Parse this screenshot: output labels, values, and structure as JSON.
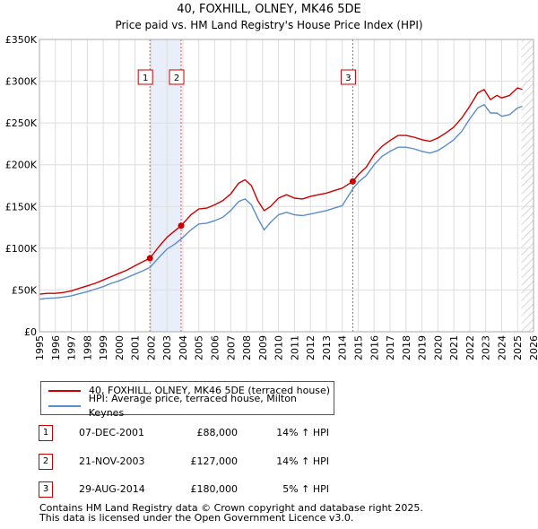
{
  "chart_data": {
    "type": "line",
    "title": "40, FOXHILL, OLNEY, MK46 5DE",
    "subtitle": "Price paid vs. HM Land Registry's House Price Index (HPI)",
    "xlim": [
      1995,
      2026
    ],
    "ylim": [
      0,
      350000
    ],
    "x_ticks": [
      1995,
      1996,
      1997,
      1998,
      1999,
      2000,
      2001,
      2002,
      2003,
      2004,
      2005,
      2006,
      2007,
      2008,
      2009,
      2010,
      2011,
      2012,
      2013,
      2014,
      2015,
      2016,
      2017,
      2018,
      2019,
      2020,
      2021,
      2022,
      2023,
      2024,
      2025,
      2026
    ],
    "x_tick_labels": [
      "1995",
      "1996",
      "1997",
      "1998",
      "1999",
      "2000",
      "2001",
      "2002",
      "2003",
      "2004",
      "2005",
      "2006",
      "2007",
      "2008",
      "2009",
      "2010",
      "2011",
      "2012",
      "2013",
      "2014",
      "2015",
      "2016",
      "2017",
      "2018",
      "2019",
      "2020",
      "2021",
      "2022",
      "2023",
      "2024",
      "2025",
      "2026"
    ],
    "y_ticks": [
      0,
      50000,
      100000,
      150000,
      200000,
      250000,
      300000,
      350000
    ],
    "y_tick_labels": [
      "£0",
      "£50K",
      "£100K",
      "£150K",
      "£200K",
      "£250K",
      "£300K",
      "£350K"
    ],
    "grid": true,
    "series": [
      {
        "name": "40, FOXHILL, OLNEY, MK46 5DE (terraced house)",
        "color": "#cc0000",
        "x": [
          1995.0,
          1995.5,
          1996.0,
          1996.5,
          1997.0,
          1997.5,
          1998.0,
          1998.5,
          1999.0,
          1999.5,
          2000.0,
          2000.5,
          2001.0,
          2001.5,
          2001.93,
          2002.5,
          2003.0,
          2003.5,
          2003.89,
          2004.5,
          2005.0,
          2005.5,
          2006.0,
          2006.5,
          2007.0,
          2007.5,
          2007.9,
          2008.3,
          2008.7,
          2009.1,
          2009.5,
          2010.0,
          2010.5,
          2011.0,
          2011.5,
          2012.0,
          2012.5,
          2013.0,
          2013.5,
          2014.0,
          2014.66,
          2015.0,
          2015.5,
          2016.0,
          2016.5,
          2017.0,
          2017.5,
          2018.0,
          2018.5,
          2019.0,
          2019.5,
          2020.0,
          2020.5,
          2021.0,
          2021.5,
          2022.0,
          2022.5,
          2022.9,
          2023.3,
          2023.7,
          2024.0,
          2024.5,
          2025.0,
          2025.3
        ],
        "y": [
          45000,
          46000,
          46000,
          47000,
          49000,
          52000,
          55000,
          58000,
          62000,
          66000,
          70000,
          74000,
          79000,
          84000,
          88000,
          102000,
          113000,
          121000,
          127000,
          140000,
          147000,
          148000,
          152000,
          157000,
          165000,
          178000,
          182000,
          175000,
          157000,
          145000,
          150000,
          160000,
          164000,
          160000,
          159000,
          162000,
          164000,
          166000,
          169000,
          172000,
          180000,
          188000,
          197000,
          212000,
          222000,
          229000,
          235000,
          235000,
          233000,
          230000,
          228000,
          232000,
          238000,
          245000,
          256000,
          270000,
          286000,
          290000,
          278000,
          283000,
          280000,
          283000,
          292000,
          290000
        ]
      },
      {
        "name": "HPI: Average price, terraced house, Milton Keynes",
        "color": "#5b8dc9",
        "x": [
          1995.0,
          1995.5,
          1996.0,
          1996.5,
          1997.0,
          1997.5,
          1998.0,
          1998.5,
          1999.0,
          1999.5,
          2000.0,
          2000.5,
          2001.0,
          2001.5,
          2001.93,
          2002.5,
          2003.0,
          2003.5,
          2003.89,
          2004.5,
          2005.0,
          2005.5,
          2006.0,
          2006.5,
          2007.0,
          2007.5,
          2007.9,
          2008.3,
          2008.7,
          2009.1,
          2009.5,
          2010.0,
          2010.5,
          2011.0,
          2011.5,
          2012.0,
          2012.5,
          2013.0,
          2013.5,
          2014.0,
          2014.66,
          2015.0,
          2015.5,
          2016.0,
          2016.5,
          2017.0,
          2017.5,
          2018.0,
          2018.5,
          2019.0,
          2019.5,
          2020.0,
          2020.5,
          2021.0,
          2021.5,
          2022.0,
          2022.5,
          2022.9,
          2023.3,
          2023.7,
          2024.0,
          2024.5,
          2025.0,
          2025.3
        ],
        "y": [
          39000,
          40000,
          40500,
          41500,
          43000,
          45500,
          48000,
          51000,
          54000,
          58000,
          61000,
          65000,
          69000,
          73000,
          77000,
          89000,
          99000,
          105000,
          111000,
          122000,
          129000,
          130000,
          133000,
          137000,
          145000,
          156000,
          159000,
          152000,
          136000,
          122000,
          131000,
          140000,
          143000,
          140000,
          139000,
          141000,
          143000,
          145000,
          148000,
          151000,
          171000,
          179000,
          187000,
          200000,
          210000,
          216000,
          221000,
          221000,
          219000,
          216000,
          214000,
          217000,
          223000,
          230000,
          240000,
          255000,
          268000,
          272000,
          262000,
          262000,
          258000,
          260000,
          268000,
          270000
        ]
      }
    ],
    "events": [
      {
        "label": "1",
        "x": 2001.93,
        "y": 88000
      },
      {
        "label": "2",
        "x": 2003.89,
        "y": 127000
      },
      {
        "label": "3",
        "x": 2014.66,
        "y": 180000
      }
    ],
    "shaded_ranges": [
      [
        2001.93,
        2003.89
      ]
    ],
    "hatched_from": 2025.25
  },
  "legend": {
    "property_label": "40, FOXHILL, OLNEY, MK46 5DE (terraced house)",
    "hpi_label": "HPI: Average price, terraced house, Milton Keynes",
    "property_color": "#cc0000",
    "hpi_color": "#5b8dc9"
  },
  "transactions": [
    {
      "num": "1",
      "date": "07-DEC-2001",
      "price": "£88,000",
      "hpi": "14% ↑ HPI"
    },
    {
      "num": "2",
      "date": "21-NOV-2003",
      "price": "£127,000",
      "hpi": "14% ↑ HPI"
    },
    {
      "num": "3",
      "date": "29-AUG-2014",
      "price": "£180,000",
      "hpi": "5% ↑ HPI"
    }
  ],
  "footer": {
    "line1": "Contains HM Land Registry data © Crown copyright and database right 2025.",
    "line2": "This data is licensed under the Open Government Licence v3.0."
  }
}
